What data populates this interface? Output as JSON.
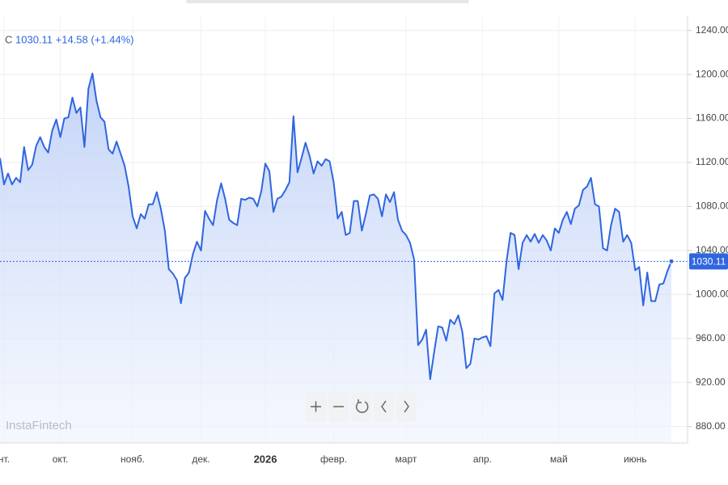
{
  "chart_data": {
    "type": "line",
    "symbol": "C",
    "legend": "1030.11 +14.58 (+1.44%)",
    "watermark": "InstaFintech",
    "color": "#2f66e0",
    "grid": true,
    "xlim": [
      0,
      167
    ],
    "xticks": [
      {
        "value": 1,
        "label": "нт."
      },
      {
        "value": 15,
        "label": "окт."
      },
      {
        "value": 33,
        "label": "нояб."
      },
      {
        "value": 50,
        "label": "дек."
      },
      {
        "value": 66,
        "label": "2026"
      },
      {
        "value": 83,
        "label": "февр."
      },
      {
        "value": 101,
        "label": "март"
      },
      {
        "value": 120,
        "label": "апр."
      },
      {
        "value": 139,
        "label": "май"
      },
      {
        "value": 158,
        "label": "июнь"
      }
    ],
    "ylim": [
      865,
      1253
    ],
    "yticks": [
      {
        "value": 880,
        "label": "880.00"
      },
      {
        "value": 920,
        "label": "920.00"
      },
      {
        "value": 960,
        "label": "960.00"
      },
      {
        "value": 1000,
        "label": "1000.00"
      },
      {
        "value": 1040,
        "label": "1040.00"
      },
      {
        "value": 1080,
        "label": "1080.00"
      },
      {
        "value": 1120,
        "label": "1120.00"
      },
      {
        "value": 1160,
        "label": "1160.00"
      },
      {
        "value": 1200,
        "label": "1200.00"
      },
      {
        "value": 1240,
        "label": "1240.00"
      }
    ],
    "values": [
      1124,
      1100,
      1110,
      1100,
      1106,
      1102,
      1134,
      1113,
      1118,
      1135,
      1143,
      1134,
      1129,
      1149,
      1159,
      1143,
      1160,
      1161,
      1179,
      1165,
      1170,
      1134,
      1187,
      1201,
      1176,
      1161,
      1157,
      1132,
      1128,
      1139,
      1128,
      1117,
      1098,
      1071,
      1060,
      1073,
      1069,
      1082,
      1082,
      1093,
      1078,
      1058,
      1023,
      1019,
      1013,
      992,
      1015,
      1020,
      1037,
      1048,
      1040,
      1076,
      1069,
      1063,
      1086,
      1101,
      1087,
      1068,
      1065,
      1063,
      1087,
      1086,
      1088,
      1087,
      1080,
      1094,
      1119,
      1112,
      1075,
      1087,
      1089,
      1095,
      1102,
      1162,
      1111,
      1124,
      1138,
      1126,
      1110,
      1121,
      1117,
      1123,
      1121,
      1102,
      1069,
      1075,
      1054,
      1056,
      1085,
      1085,
      1058,
      1073,
      1090,
      1091,
      1087,
      1071,
      1091,
      1084,
      1093,
      1068,
      1058,
      1054,
      1047,
      1032,
      954,
      959,
      968,
      923,
      948,
      971,
      970,
      958,
      977,
      973,
      981,
      966,
      933,
      937,
      960,
      959,
      961,
      962,
      953,
      1001,
      1004,
      995,
      1030,
      1056,
      1054,
      1023,
      1047,
      1054,
      1048,
      1055,
      1047,
      1054,
      1049,
      1040,
      1060,
      1056,
      1068,
      1075,
      1064,
      1078,
      1081,
      1095,
      1098,
      1106,
      1082,
      1080,
      1042,
      1040,
      1063,
      1078,
      1075,
      1048,
      1054,
      1047,
      1022,
      1025,
      990,
      1020,
      994,
      994,
      1009,
      1010,
      1021,
      1030.11
    ]
  }
}
